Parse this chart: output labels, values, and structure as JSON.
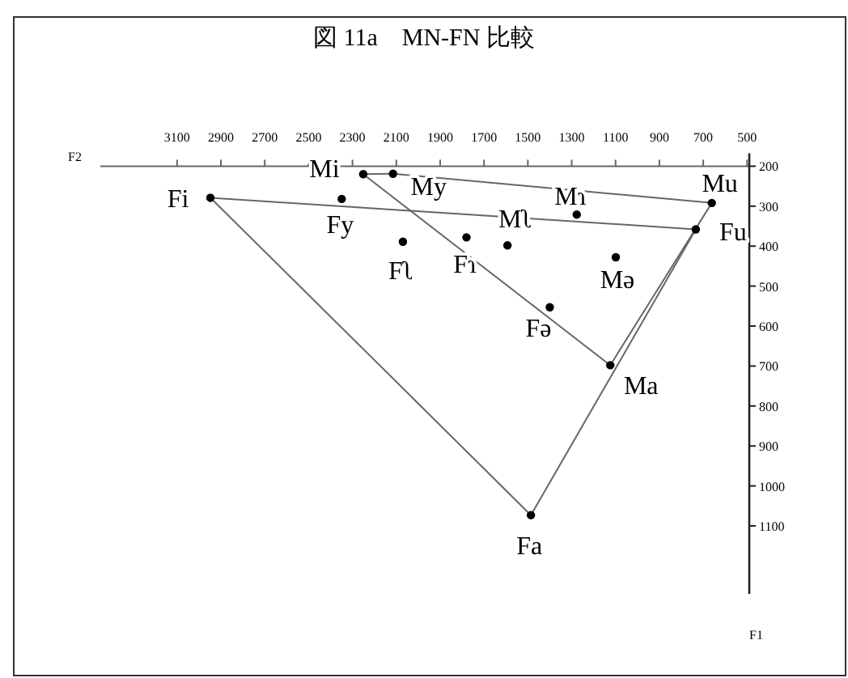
{
  "chart_data": {
    "type": "scatter",
    "title": "図 11a　MN-FN 比較",
    "xlabel": "F2",
    "ylabel": "F1",
    "xlim": [
      3450,
      490
    ],
    "ylim": [
      1270,
      200
    ],
    "xticks": [
      3100,
      2900,
      2700,
      2500,
      2300,
      2100,
      1900,
      1700,
      1500,
      1300,
      1100,
      900,
      700,
      500
    ],
    "yticks": [
      200,
      300,
      400,
      500,
      600,
      700,
      800,
      900,
      1000,
      1100
    ],
    "grid": false,
    "series": [
      {
        "type": "line",
        "color": "#666666",
        "marker": "none",
        "x": [
          2251,
          2115
        ],
        "values": [
          220,
          219
        ]
      },
      {
        "type": "line",
        "color": "#666666",
        "marker": "none",
        "x": [
          2115,
          661
        ],
        "values": [
          219,
          292
        ]
      },
      {
        "type": "line",
        "color": "#666666",
        "marker": "none",
        "x": [
          661,
          1124
        ],
        "values": [
          292,
          698
        ]
      },
      {
        "type": "line",
        "color": "#666666",
        "marker": "none",
        "x": [
          2251,
          1124
        ],
        "values": [
          220,
          698
        ]
      },
      {
        "type": "line",
        "color": "#666666",
        "marker": "none",
        "x": [
          2948,
          734
        ],
        "values": [
          279,
          358
        ]
      },
      {
        "type": "line",
        "color": "#666666",
        "marker": "none",
        "x": [
          734,
          1486
        ],
        "values": [
          358,
          1073
        ]
      },
      {
        "type": "line",
        "color": "#666666",
        "marker": "none",
        "x": [
          2948,
          1486
        ],
        "values": [
          279,
          1073
        ]
      },
      {
        "type": "scatter",
        "color": "#000000",
        "marker": "circle",
        "x": [
          2251,
          2115,
          2948,
          2349,
          1277,
          661,
          1593,
          734,
          2070,
          1780,
          1099,
          1400,
          1124,
          1486
        ],
        "values": [
          220,
          219,
          279,
          282,
          321,
          292,
          398,
          358,
          389,
          378,
          428,
          553,
          698,
          1073
        ]
      }
    ],
    "annotations": [
      {
        "text": "Mi",
        "x": 2251,
        "y": 220
      },
      {
        "text": "My",
        "x": 2115,
        "y": 219
      },
      {
        "text": "Fi",
        "x": 2948,
        "y": 279
      },
      {
        "text": "Fy",
        "x": 2349,
        "y": 282
      },
      {
        "text": "Mɿ",
        "x": 1277,
        "y": 321
      },
      {
        "text": "Mu",
        "x": 661,
        "y": 292
      },
      {
        "text": "Mʅ",
        "x": 1593,
        "y": 398
      },
      {
        "text": "Fu",
        "x": 734,
        "y": 358
      },
      {
        "text": "Fʅ",
        "x": 2070,
        "y": 389
      },
      {
        "text": "Fɿ",
        "x": 1780,
        "y": 378
      },
      {
        "text": "Mə",
        "x": 1099,
        "y": 428
      },
      {
        "text": "Fə",
        "x": 1400,
        "y": 553
      },
      {
        "text": "Ma",
        "x": 1124,
        "y": 698
      },
      {
        "text": "Fa",
        "x": 1486,
        "y": 1073
      }
    ]
  }
}
